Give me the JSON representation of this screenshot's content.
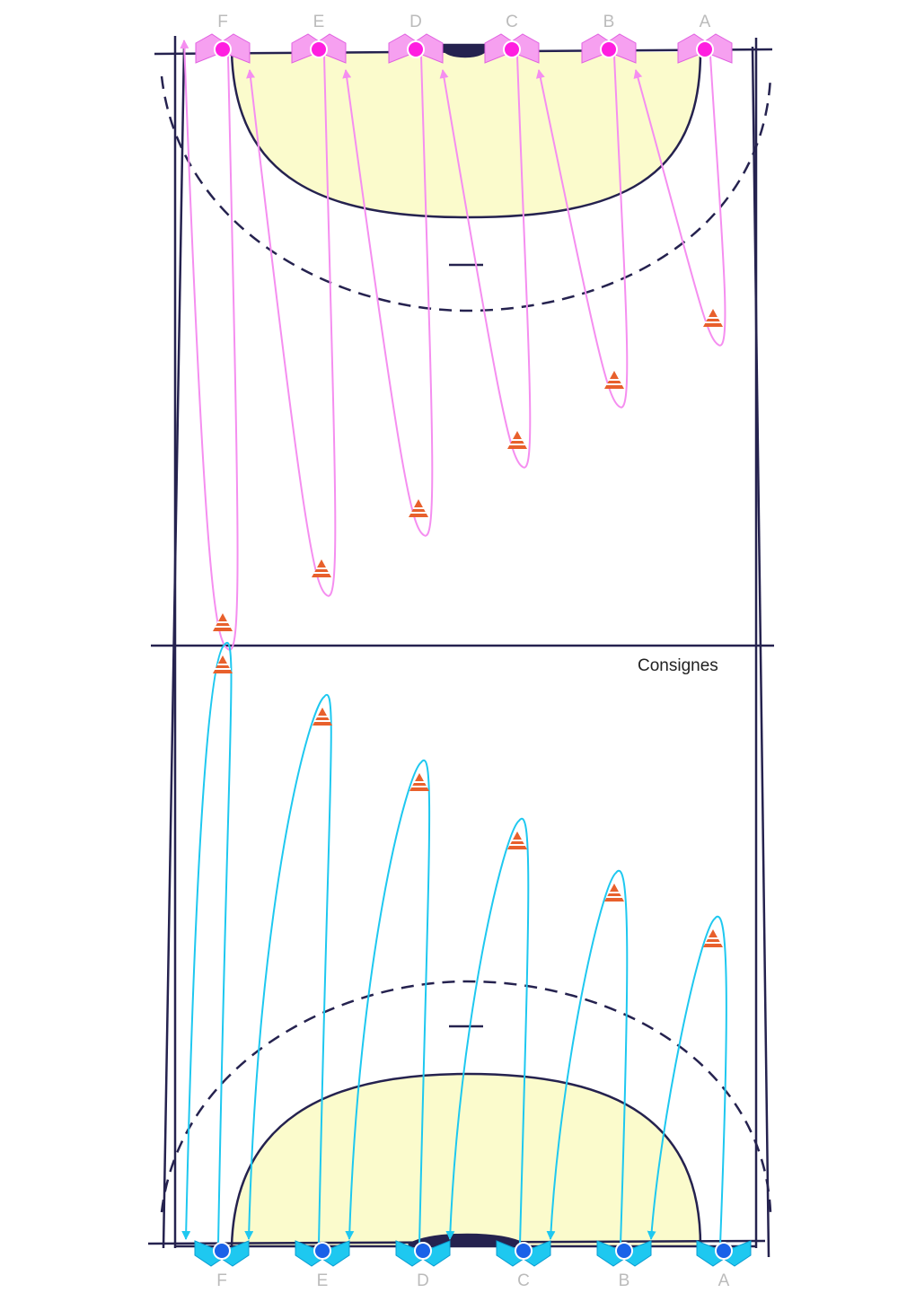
{
  "top_labels": [
    "F",
    "E",
    "D",
    "C",
    "B",
    "A"
  ],
  "bottom_labels": [
    "F",
    "E",
    "D",
    "C",
    "B",
    "A"
  ],
  "caption": "Consignes"
}
